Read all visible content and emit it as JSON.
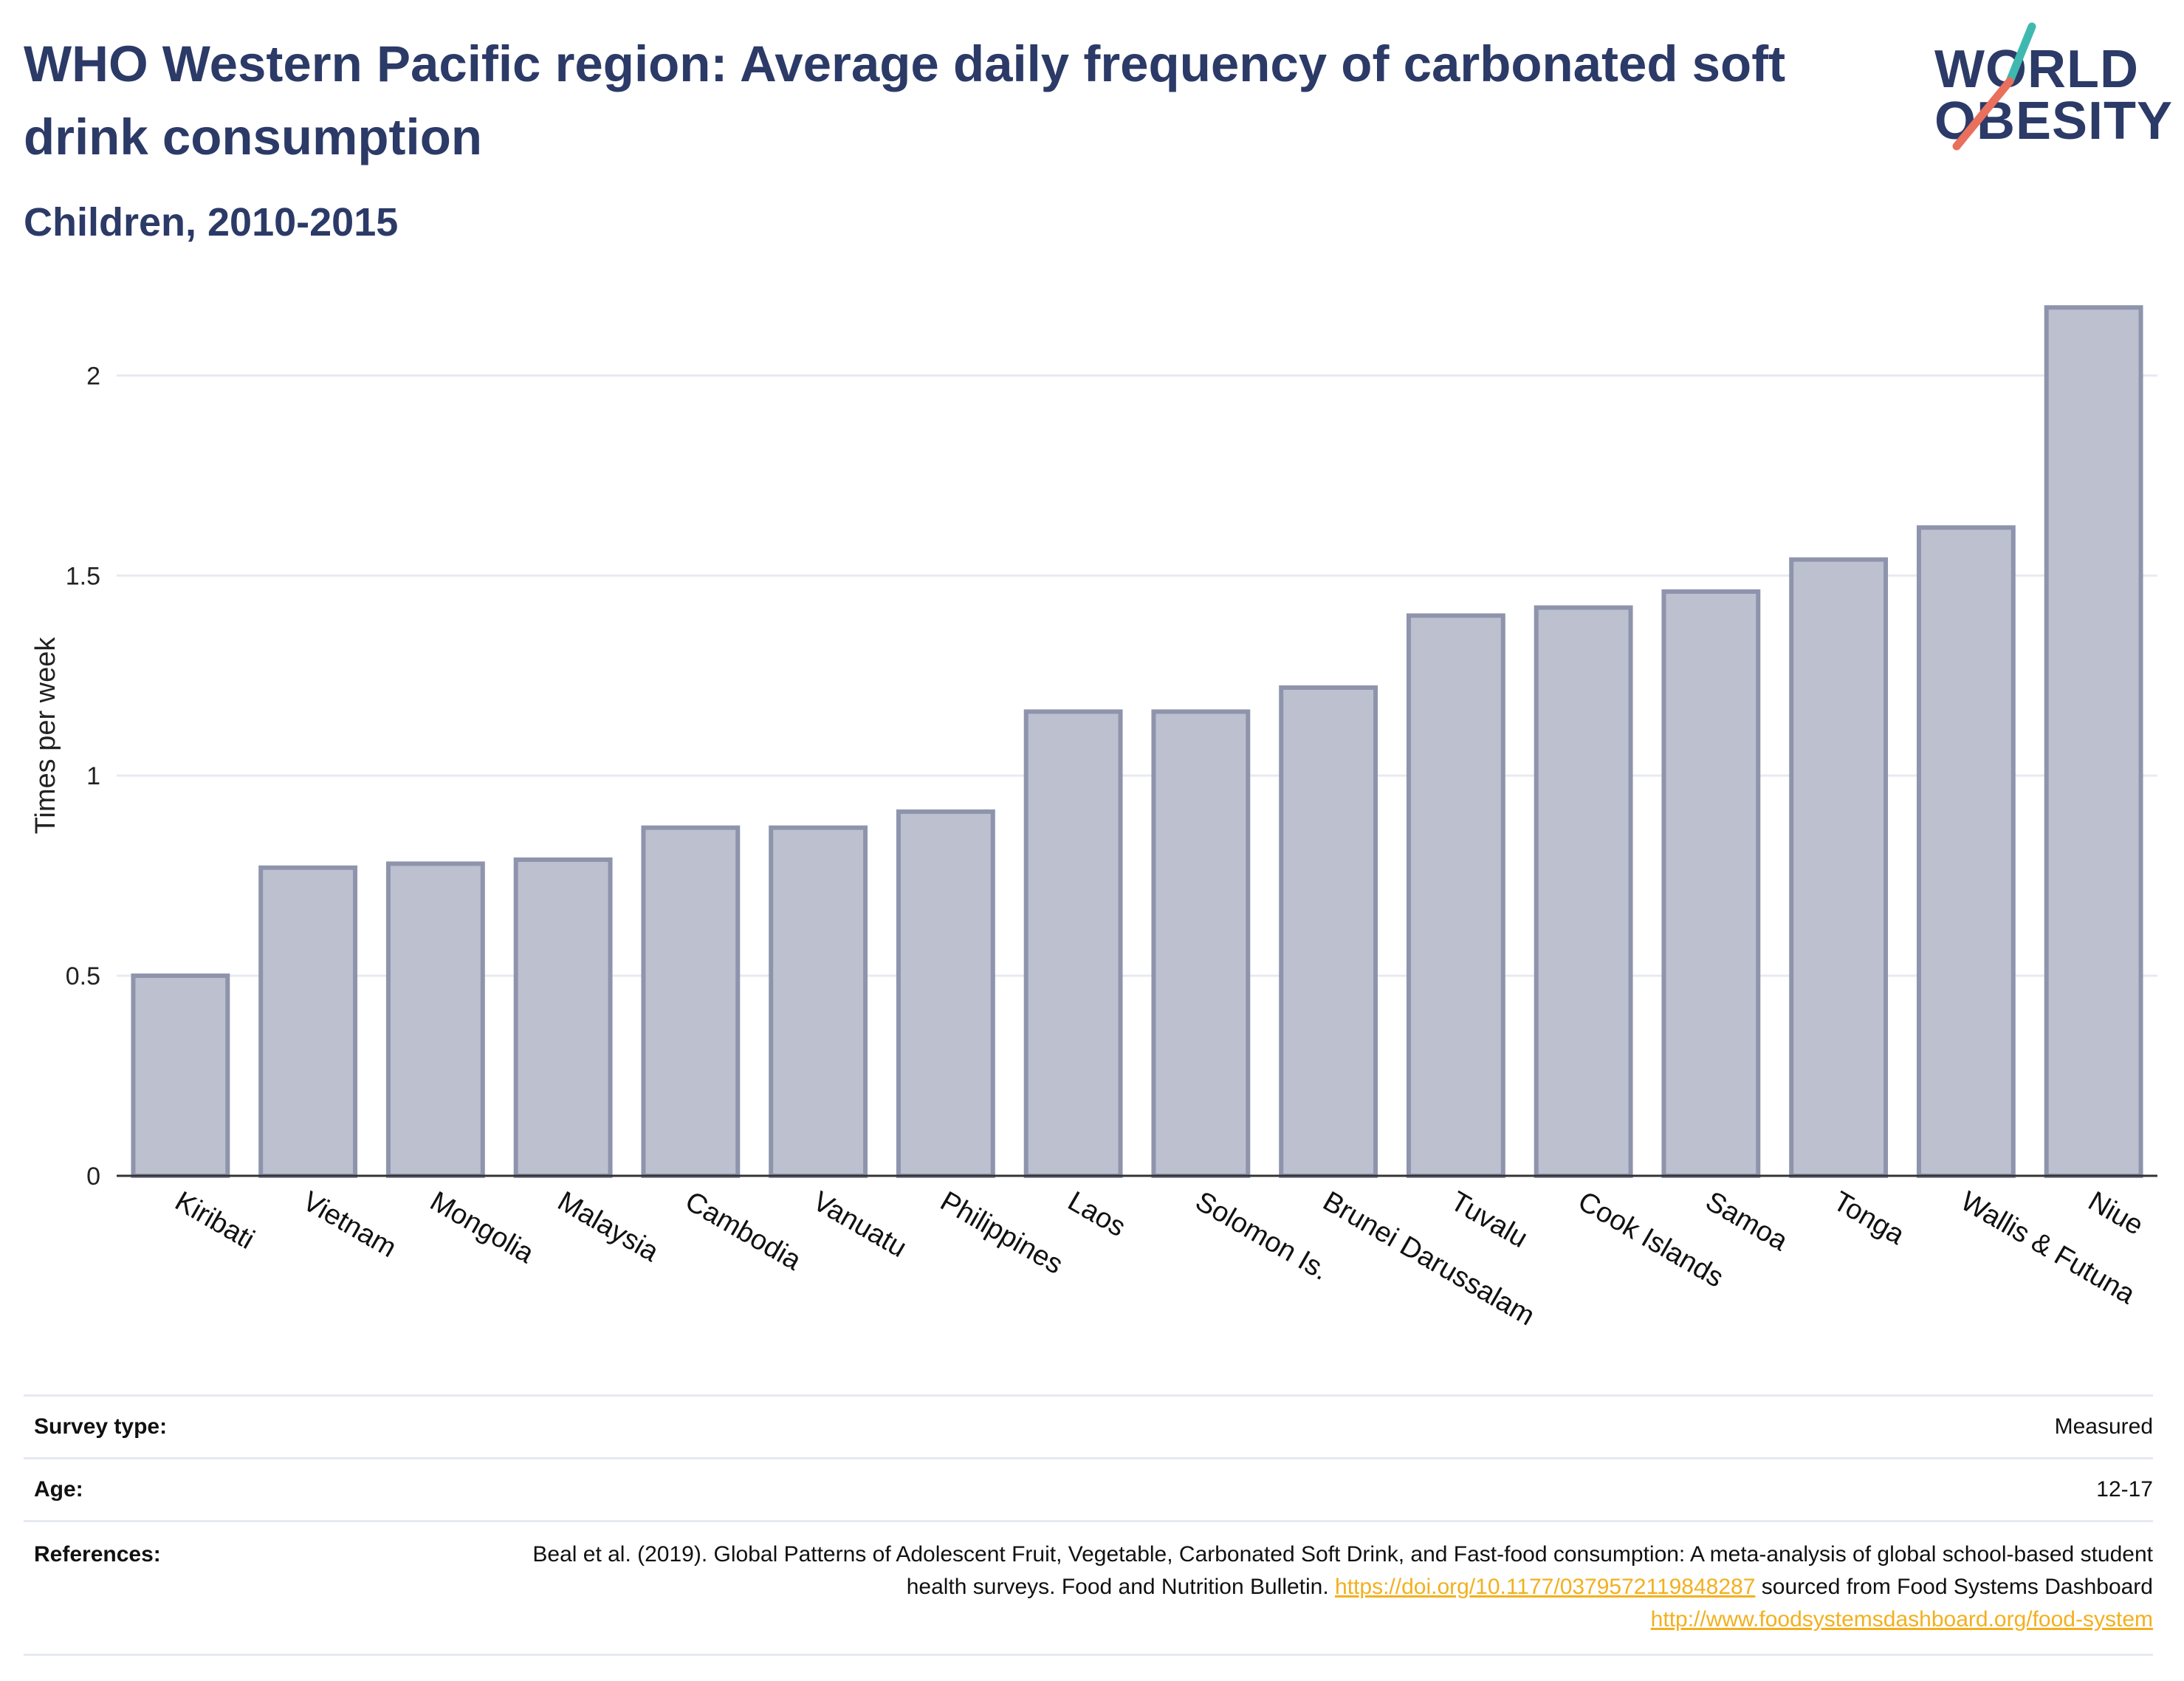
{
  "header": {
    "title": "WHO Western Pacific region: Average daily frequency of carbonated soft drink consumption",
    "subtitle": "Children, 2010-2015"
  },
  "logo": {
    "line1": "WORLD",
    "line2": "OBESITY",
    "colors": {
      "text": "#2b3a67",
      "slash_top": "#3fb8b0",
      "slash_bottom": "#e8705c"
    }
  },
  "chart_data": {
    "type": "bar",
    "title": "",
    "xlabel": "",
    "ylabel": "Times per week",
    "ylim": [
      0,
      2.2
    ],
    "yticks": [
      0,
      0.5,
      1,
      1.5,
      2
    ],
    "ytick_labels": [
      "0",
      "0.5",
      "1",
      "1.5",
      "2"
    ],
    "grid": true,
    "bar_color": "#bcc0cf",
    "bar_edge_color": "#8e94ac",
    "categories": [
      "Kiribati",
      "Vietnam",
      "Mongolia",
      "Malaysia",
      "Cambodia",
      "Vanuatu",
      "Philippines",
      "Laos",
      "Solomon Is.",
      "Brunei Darussalam",
      "Tuvalu",
      "Cook Islands",
      "Samoa",
      "Tonga",
      "Wallis & Futuna",
      "Niue"
    ],
    "values": [
      0.5,
      0.77,
      0.78,
      0.79,
      0.87,
      0.87,
      0.91,
      1.16,
      1.16,
      1.22,
      1.4,
      1.42,
      1.46,
      1.54,
      1.62,
      2.17
    ]
  },
  "meta": {
    "survey_type_label": "Survey type:",
    "survey_type_value": "Measured",
    "age_label": "Age:",
    "age_value": "12-17",
    "references_label": "References:",
    "references_text1": "Beal et al. (2019). Global Patterns of Adolescent Fruit, Vegetable, Carbonated Soft Drink, and Fast-food consumption: A meta-analysis of global school-based student health surveys. Food and Nutrition Bulletin. ",
    "references_link1": "https://doi.org/10.1177/0379572119848287",
    "references_text2": " sourced from Food Systems Dashboard ",
    "references_link2": "http://www.foodsystemsdashboard.org/food-system"
  }
}
